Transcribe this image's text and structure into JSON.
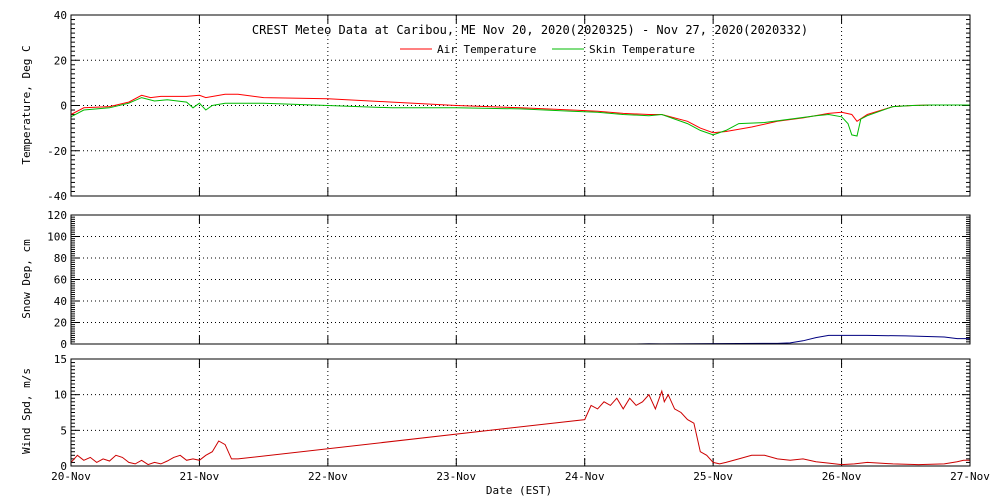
{
  "chart_data": [
    {
      "type": "line",
      "title": "CREST Meteo Data at Caribou, ME   Nov 20, 2020(2020325) - Nov 27, 2020(2020332)",
      "xlabel": "",
      "ylabel": "Temperature, Deg C",
      "ylim": [
        -40,
        40
      ],
      "yticks": [
        40,
        20,
        0,
        -20,
        -40
      ],
      "xlim": [
        0,
        7
      ],
      "grid": true,
      "legend": "top-center",
      "series": [
        {
          "name": "Air Temperature",
          "color": "#ff0000",
          "x": [
            0.0,
            0.1,
            0.3,
            0.45,
            0.55,
            0.62,
            0.7,
            0.9,
            1.0,
            1.05,
            1.2,
            1.3,
            1.5,
            2.0,
            2.5,
            3.0,
            3.5,
            3.9,
            4.1,
            4.3,
            4.5,
            4.6,
            4.8,
            4.9,
            5.0,
            5.1,
            5.3,
            5.5,
            5.7,
            5.9,
            6.0,
            6.08,
            6.12,
            6.2,
            6.4,
            6.55,
            6.7,
            6.9,
            7.0
          ],
          "y": [
            -4,
            -1,
            -0.5,
            1.5,
            4.5,
            3.5,
            4,
            4,
            4.5,
            3.5,
            5,
            5,
            3.5,
            3,
            1.5,
            0,
            -1,
            -2,
            -2.5,
            -3.5,
            -4,
            -4,
            -7,
            -10,
            -12,
            -11.5,
            -9.5,
            -7,
            -5.5,
            -3.5,
            -3,
            -4,
            -7,
            -4,
            -0.5,
            0,
            0.2,
            0.2,
            0.2
          ]
        },
        {
          "name": "Skin Temperature",
          "color": "#00bb00",
          "x": [
            0.0,
            0.1,
            0.3,
            0.45,
            0.55,
            0.65,
            0.75,
            0.9,
            0.95,
            1.0,
            1.05,
            1.1,
            1.2,
            1.5,
            2.0,
            2.5,
            3.0,
            3.5,
            3.9,
            4.1,
            4.3,
            4.5,
            4.6,
            4.8,
            4.9,
            5.0,
            5.1,
            5.2,
            5.4,
            5.6,
            5.8,
            5.9,
            6.0,
            6.05,
            6.08,
            6.12,
            6.15,
            6.2,
            6.4,
            6.55,
            6.7,
            6.9,
            7.0
          ],
          "y": [
            -5,
            -2,
            -1,
            1,
            3.5,
            2,
            2.5,
            1.5,
            -1,
            1,
            -2,
            0,
            1,
            1,
            0,
            -1,
            -1,
            -1.5,
            -2.5,
            -3,
            -4,
            -4.5,
            -4,
            -8,
            -11,
            -13,
            -11,
            -8,
            -7.5,
            -6,
            -4.5,
            -4,
            -5,
            -8,
            -13,
            -13.5,
            -6,
            -4.5,
            -0.5,
            0,
            0.2,
            0.2,
            0.2
          ]
        }
      ]
    },
    {
      "type": "line",
      "title": "",
      "xlabel": "",
      "ylabel": "Snow Dep, cm",
      "ylim": [
        0,
        120
      ],
      "yticks": [
        120,
        100,
        80,
        60,
        40,
        20,
        0
      ],
      "xlim": [
        0,
        7
      ],
      "grid": true,
      "series": [
        {
          "color": "#000080",
          "x": [
            0.0,
            0.5,
            1.0,
            2.0,
            3.0,
            4.0,
            4.4,
            4.5,
            4.6,
            4.8,
            5.0,
            5.2,
            5.4,
            5.5,
            5.6,
            5.7,
            5.8,
            5.9,
            6.0,
            6.2,
            6.5,
            6.8,
            6.9,
            7.0
          ],
          "y": [
            0,
            0,
            0,
            0,
            0,
            0,
            0,
            0.3,
            0.1,
            0.3,
            0.4,
            0.5,
            0.6,
            0.6,
            1,
            3,
            6,
            8,
            8,
            8,
            7.5,
            6.5,
            5,
            5
          ]
        }
      ]
    },
    {
      "type": "line",
      "title": "",
      "xlabel": "Date (EST)",
      "ylabel": "Wind Spd, m/s",
      "ylim": [
        0,
        15
      ],
      "yticks": [
        15,
        10,
        5,
        0
      ],
      "xlim": [
        0,
        7
      ],
      "xticks": [
        "20-Nov",
        "21-Nov",
        "22-Nov",
        "23-Nov",
        "24-Nov",
        "25-Nov",
        "26-Nov",
        "27-Nov"
      ],
      "grid": true,
      "series": [
        {
          "color": "#cc0000",
          "x": [
            0.0,
            0.05,
            0.1,
            0.15,
            0.2,
            0.25,
            0.3,
            0.35,
            0.4,
            0.45,
            0.5,
            0.55,
            0.6,
            0.65,
            0.7,
            0.75,
            0.8,
            0.85,
            0.9,
            0.95,
            1.0,
            1.05,
            1.1,
            1.15,
            1.2,
            1.25,
            1.3,
            4.0,
            4.05,
            4.1,
            4.15,
            4.2,
            4.25,
            4.3,
            4.35,
            4.4,
            4.45,
            4.5,
            4.55,
            4.6,
            4.62,
            4.65,
            4.7,
            4.75,
            4.8,
            4.85,
            4.9,
            4.95,
            5.0,
            5.05,
            5.1,
            5.2,
            5.3,
            5.4,
            5.5,
            5.6,
            5.7,
            5.8,
            5.9,
            6.0,
            6.1,
            6.2,
            6.4,
            6.6,
            6.8,
            6.9,
            6.95,
            7.0
          ],
          "y": [
            0.5,
            1.5,
            0.8,
            1.2,
            0.5,
            1,
            0.7,
            1.5,
            1.2,
            0.5,
            0.3,
            0.8,
            0.2,
            0.5,
            0.3,
            0.7,
            1.2,
            1.5,
            0.8,
            1,
            0.8,
            1.5,
            2,
            3.5,
            3,
            1,
            1,
            6.5,
            8.5,
            8,
            9,
            8.5,
            9.5,
            8,
            9.5,
            8.5,
            9,
            10,
            8,
            10.5,
            9,
            10,
            8,
            7.5,
            6.5,
            6,
            2,
            1.5,
            0.5,
            0.3,
            0.5,
            1,
            1.5,
            1.5,
            1,
            0.8,
            1,
            0.6,
            0.4,
            0.2,
            0.3,
            0.5,
            0.3,
            0.2,
            0.3,
            0.6,
            0.8,
            0.8
          ]
        }
      ]
    }
  ]
}
